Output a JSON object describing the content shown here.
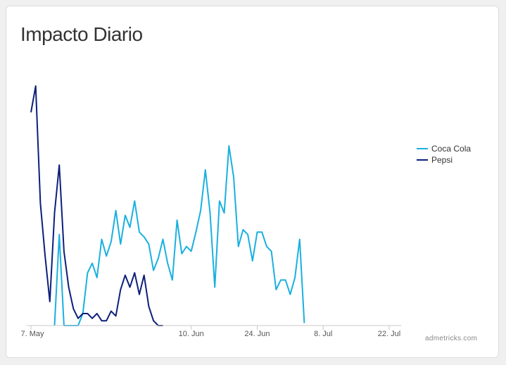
{
  "chart_data": {
    "type": "line",
    "title": "Impacto Diario",
    "xlabel": "",
    "ylabel": "",
    "x_start": "2018-05-07",
    "x_end": "2018-07-22",
    "x_ticks": [
      {
        "label": "7. May",
        "date": "2018-05-07"
      },
      {
        "label": "10. Jun",
        "date": "2018-06-10"
      },
      {
        "label": "24. Jun",
        "date": "2018-06-24"
      },
      {
        "label": "8. Jul",
        "date": "2018-07-08"
      },
      {
        "label": "22. Jul",
        "date": "2018-07-22"
      }
    ],
    "y_range": [
      0,
      100
    ],
    "grid": false,
    "legend_position": "right",
    "series": [
      {
        "name": "Coca Cola",
        "color": "#1ab0e0",
        "points": [
          [
            "2018-05-12",
            0
          ],
          [
            "2018-05-13",
            38
          ],
          [
            "2018-05-14",
            0
          ],
          [
            "2018-05-15",
            0
          ],
          [
            "2018-05-16",
            0
          ],
          [
            "2018-05-17",
            0
          ],
          [
            "2018-05-18",
            5
          ],
          [
            "2018-05-19",
            22
          ],
          [
            "2018-05-20",
            26
          ],
          [
            "2018-05-21",
            20
          ],
          [
            "2018-05-22",
            36
          ],
          [
            "2018-05-23",
            29
          ],
          [
            "2018-05-24",
            35
          ],
          [
            "2018-05-25",
            48
          ],
          [
            "2018-05-26",
            34
          ],
          [
            "2018-05-27",
            46
          ],
          [
            "2018-05-28",
            41
          ],
          [
            "2018-05-29",
            52
          ],
          [
            "2018-05-30",
            39
          ],
          [
            "2018-05-31",
            37
          ],
          [
            "2018-06-01",
            34
          ],
          [
            "2018-06-02",
            23
          ],
          [
            "2018-06-03",
            28
          ],
          [
            "2018-06-04",
            36
          ],
          [
            "2018-06-05",
            26
          ],
          [
            "2018-06-06",
            19
          ],
          [
            "2018-06-07",
            44
          ],
          [
            "2018-06-08",
            30
          ],
          [
            "2018-06-09",
            33
          ],
          [
            "2018-06-10",
            31
          ],
          [
            "2018-06-11",
            39
          ],
          [
            "2018-06-12",
            48
          ],
          [
            "2018-06-13",
            65
          ],
          [
            "2018-06-14",
            47
          ],
          [
            "2018-06-15",
            16
          ],
          [
            "2018-06-16",
            52
          ],
          [
            "2018-06-17",
            47
          ],
          [
            "2018-06-18",
            75
          ],
          [
            "2018-06-19",
            62
          ],
          [
            "2018-06-20",
            33
          ],
          [
            "2018-06-21",
            40
          ],
          [
            "2018-06-22",
            38
          ],
          [
            "2018-06-23",
            27
          ],
          [
            "2018-06-24",
            39
          ],
          [
            "2018-06-25",
            39
          ],
          [
            "2018-06-26",
            33
          ],
          [
            "2018-06-27",
            31
          ],
          [
            "2018-06-28",
            15
          ],
          [
            "2018-06-29",
            19
          ],
          [
            "2018-06-30",
            19
          ],
          [
            "2018-07-01",
            13
          ],
          [
            "2018-07-02",
            20
          ],
          [
            "2018-07-03",
            36
          ],
          [
            "2018-07-04",
            1
          ]
        ]
      },
      {
        "name": "Pepsi",
        "color": "#0d1f7a",
        "points": [
          [
            "2018-05-07",
            89
          ],
          [
            "2018-05-08",
            100
          ],
          [
            "2018-05-09",
            51
          ],
          [
            "2018-05-10",
            29
          ],
          [
            "2018-05-11",
            10
          ],
          [
            "2018-05-12",
            47
          ],
          [
            "2018-05-13",
            67
          ],
          [
            "2018-05-14",
            31
          ],
          [
            "2018-05-15",
            16
          ],
          [
            "2018-05-16",
            7
          ],
          [
            "2018-05-17",
            3
          ],
          [
            "2018-05-18",
            5
          ],
          [
            "2018-05-19",
            5
          ],
          [
            "2018-05-20",
            3
          ],
          [
            "2018-05-21",
            5
          ],
          [
            "2018-05-22",
            2
          ],
          [
            "2018-05-23",
            2
          ],
          [
            "2018-05-24",
            6
          ],
          [
            "2018-05-25",
            4
          ],
          [
            "2018-05-26",
            15
          ],
          [
            "2018-05-27",
            21
          ],
          [
            "2018-05-28",
            16
          ],
          [
            "2018-05-29",
            22
          ],
          [
            "2018-05-30",
            13
          ],
          [
            "2018-05-31",
            21
          ],
          [
            "2018-06-01",
            8
          ],
          [
            "2018-06-02",
            2
          ],
          [
            "2018-06-03",
            0
          ],
          [
            "2018-06-04",
            0
          ]
        ]
      }
    ],
    "credit": "admetricks.com"
  }
}
